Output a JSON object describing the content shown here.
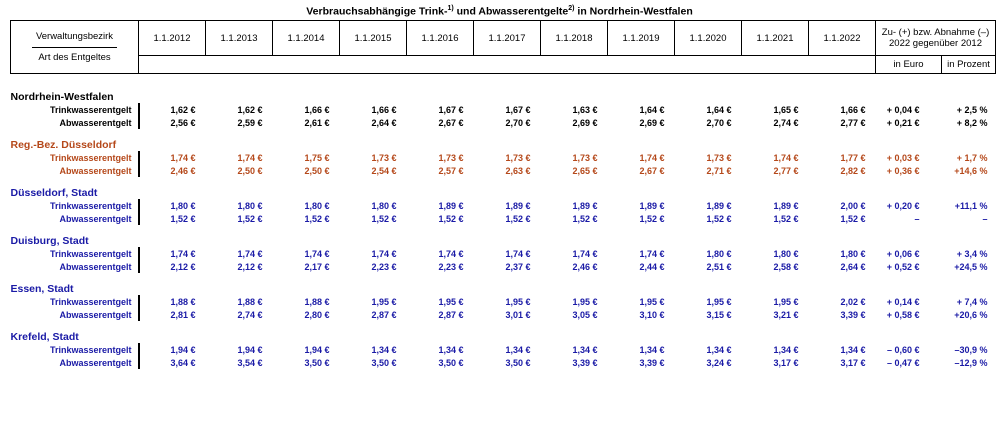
{
  "title": {
    "main": "Verbrauchsabhängige Trink-",
    "sup1": "1)",
    "mid": " und Abwasserentgelte",
    "sup2": "2)",
    "tail": " in Nordrhein-Westfalen"
  },
  "header": {
    "admin_top": "Verwaltungsbezirk",
    "admin_bottom": "Art des Entgeltes",
    "dates": [
      "1.1.2012",
      "1.1.2013",
      "1.1.2014",
      "1.1.2015",
      "1.1.2016",
      "1.1.2017",
      "1.1.2018",
      "1.1.2019",
      "1.1.2020",
      "1.1.2021",
      "1.1.2022"
    ],
    "change_line1": "Zu- (+) bzw. Abnahme (–)",
    "change_line2": "2022 gegenüber 2012",
    "in_euro": "in Euro",
    "in_percent": "in Prozent"
  },
  "colors": {
    "black": "#000000",
    "brown": "#b5481a",
    "blue": "#1a1aa6"
  },
  "groups": [
    {
      "name": "Nordrhein-Westfalen",
      "color": "#000000",
      "rows": [
        {
          "label": "Trinkwasserentgelt",
          "values": [
            "1,62 €",
            "1,62 €",
            "1,66 €",
            "1,66 €",
            "1,67 €",
            "1,67 €",
            "1,63 €",
            "1,64 €",
            "1,64 €",
            "1,65 €",
            "1,66 €"
          ],
          "euro": "+ 0,04 €",
          "pct": "+ 2,5 %"
        },
        {
          "label": "Abwasserentgelt",
          "values": [
            "2,56 €",
            "2,59 €",
            "2,61 €",
            "2,64 €",
            "2,67 €",
            "2,70 €",
            "2,69 €",
            "2,69 €",
            "2,70 €",
            "2,74 €",
            "2,77 €"
          ],
          "euro": "+ 0,21 €",
          "pct": "+ 8,2 %"
        }
      ]
    },
    {
      "name": "Reg.-Bez. Düsseldorf",
      "color": "#b5481a",
      "rows": [
        {
          "label": "Trinkwasserentgelt",
          "values": [
            "1,74 €",
            "1,74 €",
            "1,75 €",
            "1,73 €",
            "1,73 €",
            "1,73 €",
            "1,73 €",
            "1,74 €",
            "1,73 €",
            "1,74 €",
            "1,77 €"
          ],
          "euro": "+ 0,03 €",
          "pct": "+ 1,7 %"
        },
        {
          "label": "Abwasserentgelt",
          "values": [
            "2,46 €",
            "2,50 €",
            "2,50 €",
            "2,54 €",
            "2,57 €",
            "2,63 €",
            "2,65 €",
            "2,67 €",
            "2,71 €",
            "2,77 €",
            "2,82 €"
          ],
          "euro": "+ 0,36 €",
          "pct": "+14,6 %"
        }
      ]
    },
    {
      "name": "Düsseldorf, Stadt",
      "color": "#1a1aa6",
      "rows": [
        {
          "label": "Trinkwasserentgelt",
          "values": [
            "1,80 €",
            "1,80 €",
            "1,80 €",
            "1,80 €",
            "1,89 €",
            "1,89 €",
            "1,89 €",
            "1,89 €",
            "1,89 €",
            "1,89 €",
            "2,00 €"
          ],
          "euro": "+ 0,20 €",
          "pct": "+11,1 %"
        },
        {
          "label": "Abwasserentgelt",
          "values": [
            "1,52 €",
            "1,52 €",
            "1,52 €",
            "1,52 €",
            "1,52 €",
            "1,52 €",
            "1,52 €",
            "1,52 €",
            "1,52 €",
            "1,52 €",
            "1,52 €"
          ],
          "euro": "–",
          "pct": "–"
        }
      ]
    },
    {
      "name": "Duisburg, Stadt",
      "color": "#1a1aa6",
      "rows": [
        {
          "label": "Trinkwasserentgelt",
          "values": [
            "1,74 €",
            "1,74 €",
            "1,74 €",
            "1,74 €",
            "1,74 €",
            "1,74 €",
            "1,74 €",
            "1,74 €",
            "1,80 €",
            "1,80 €",
            "1,80 €"
          ],
          "euro": "+ 0,06 €",
          "pct": "+ 3,4 %"
        },
        {
          "label": "Abwasserentgelt",
          "values": [
            "2,12 €",
            "2,12 €",
            "2,17 €",
            "2,23 €",
            "2,23 €",
            "2,37 €",
            "2,46 €",
            "2,44 €",
            "2,51 €",
            "2,58 €",
            "2,64 €"
          ],
          "euro": "+ 0,52 €",
          "pct": "+24,5 %"
        }
      ]
    },
    {
      "name": "Essen, Stadt",
      "color": "#1a1aa6",
      "rows": [
        {
          "label": "Trinkwasserentgelt",
          "values": [
            "1,88 €",
            "1,88 €",
            "1,88 €",
            "1,95 €",
            "1,95 €",
            "1,95 €",
            "1,95 €",
            "1,95 €",
            "1,95 €",
            "1,95 €",
            "2,02 €"
          ],
          "euro": "+ 0,14 €",
          "pct": "+ 7,4 %"
        },
        {
          "label": "Abwasserentgelt",
          "values": [
            "2,81 €",
            "2,74 €",
            "2,80 €",
            "2,87 €",
            "2,87 €",
            "3,01 €",
            "3,05 €",
            "3,10 €",
            "3,15 €",
            "3,21 €",
            "3,39 €"
          ],
          "euro": "+ 0,58 €",
          "pct": "+20,6 %"
        }
      ]
    },
    {
      "name": "Krefeld, Stadt",
      "color": "#1a1aa6",
      "rows": [
        {
          "label": "Trinkwasserentgelt",
          "values": [
            "1,94 €",
            "1,94 €",
            "1,94 €",
            "1,34 €",
            "1,34 €",
            "1,34 €",
            "1,34 €",
            "1,34 €",
            "1,34 €",
            "1,34 €",
            "1,34 €"
          ],
          "euro": "– 0,60 €",
          "pct": "–30,9 %"
        },
        {
          "label": "Abwasserentgelt",
          "values": [
            "3,64 €",
            "3,54 €",
            "3,50 €",
            "3,50 €",
            "3,50 €",
            "3,50 €",
            "3,39 €",
            "3,39 €",
            "3,24 €",
            "3,17 €",
            "3,17 €"
          ],
          "euro": "– 0,47 €",
          "pct": "–12,9 %"
        }
      ]
    }
  ]
}
